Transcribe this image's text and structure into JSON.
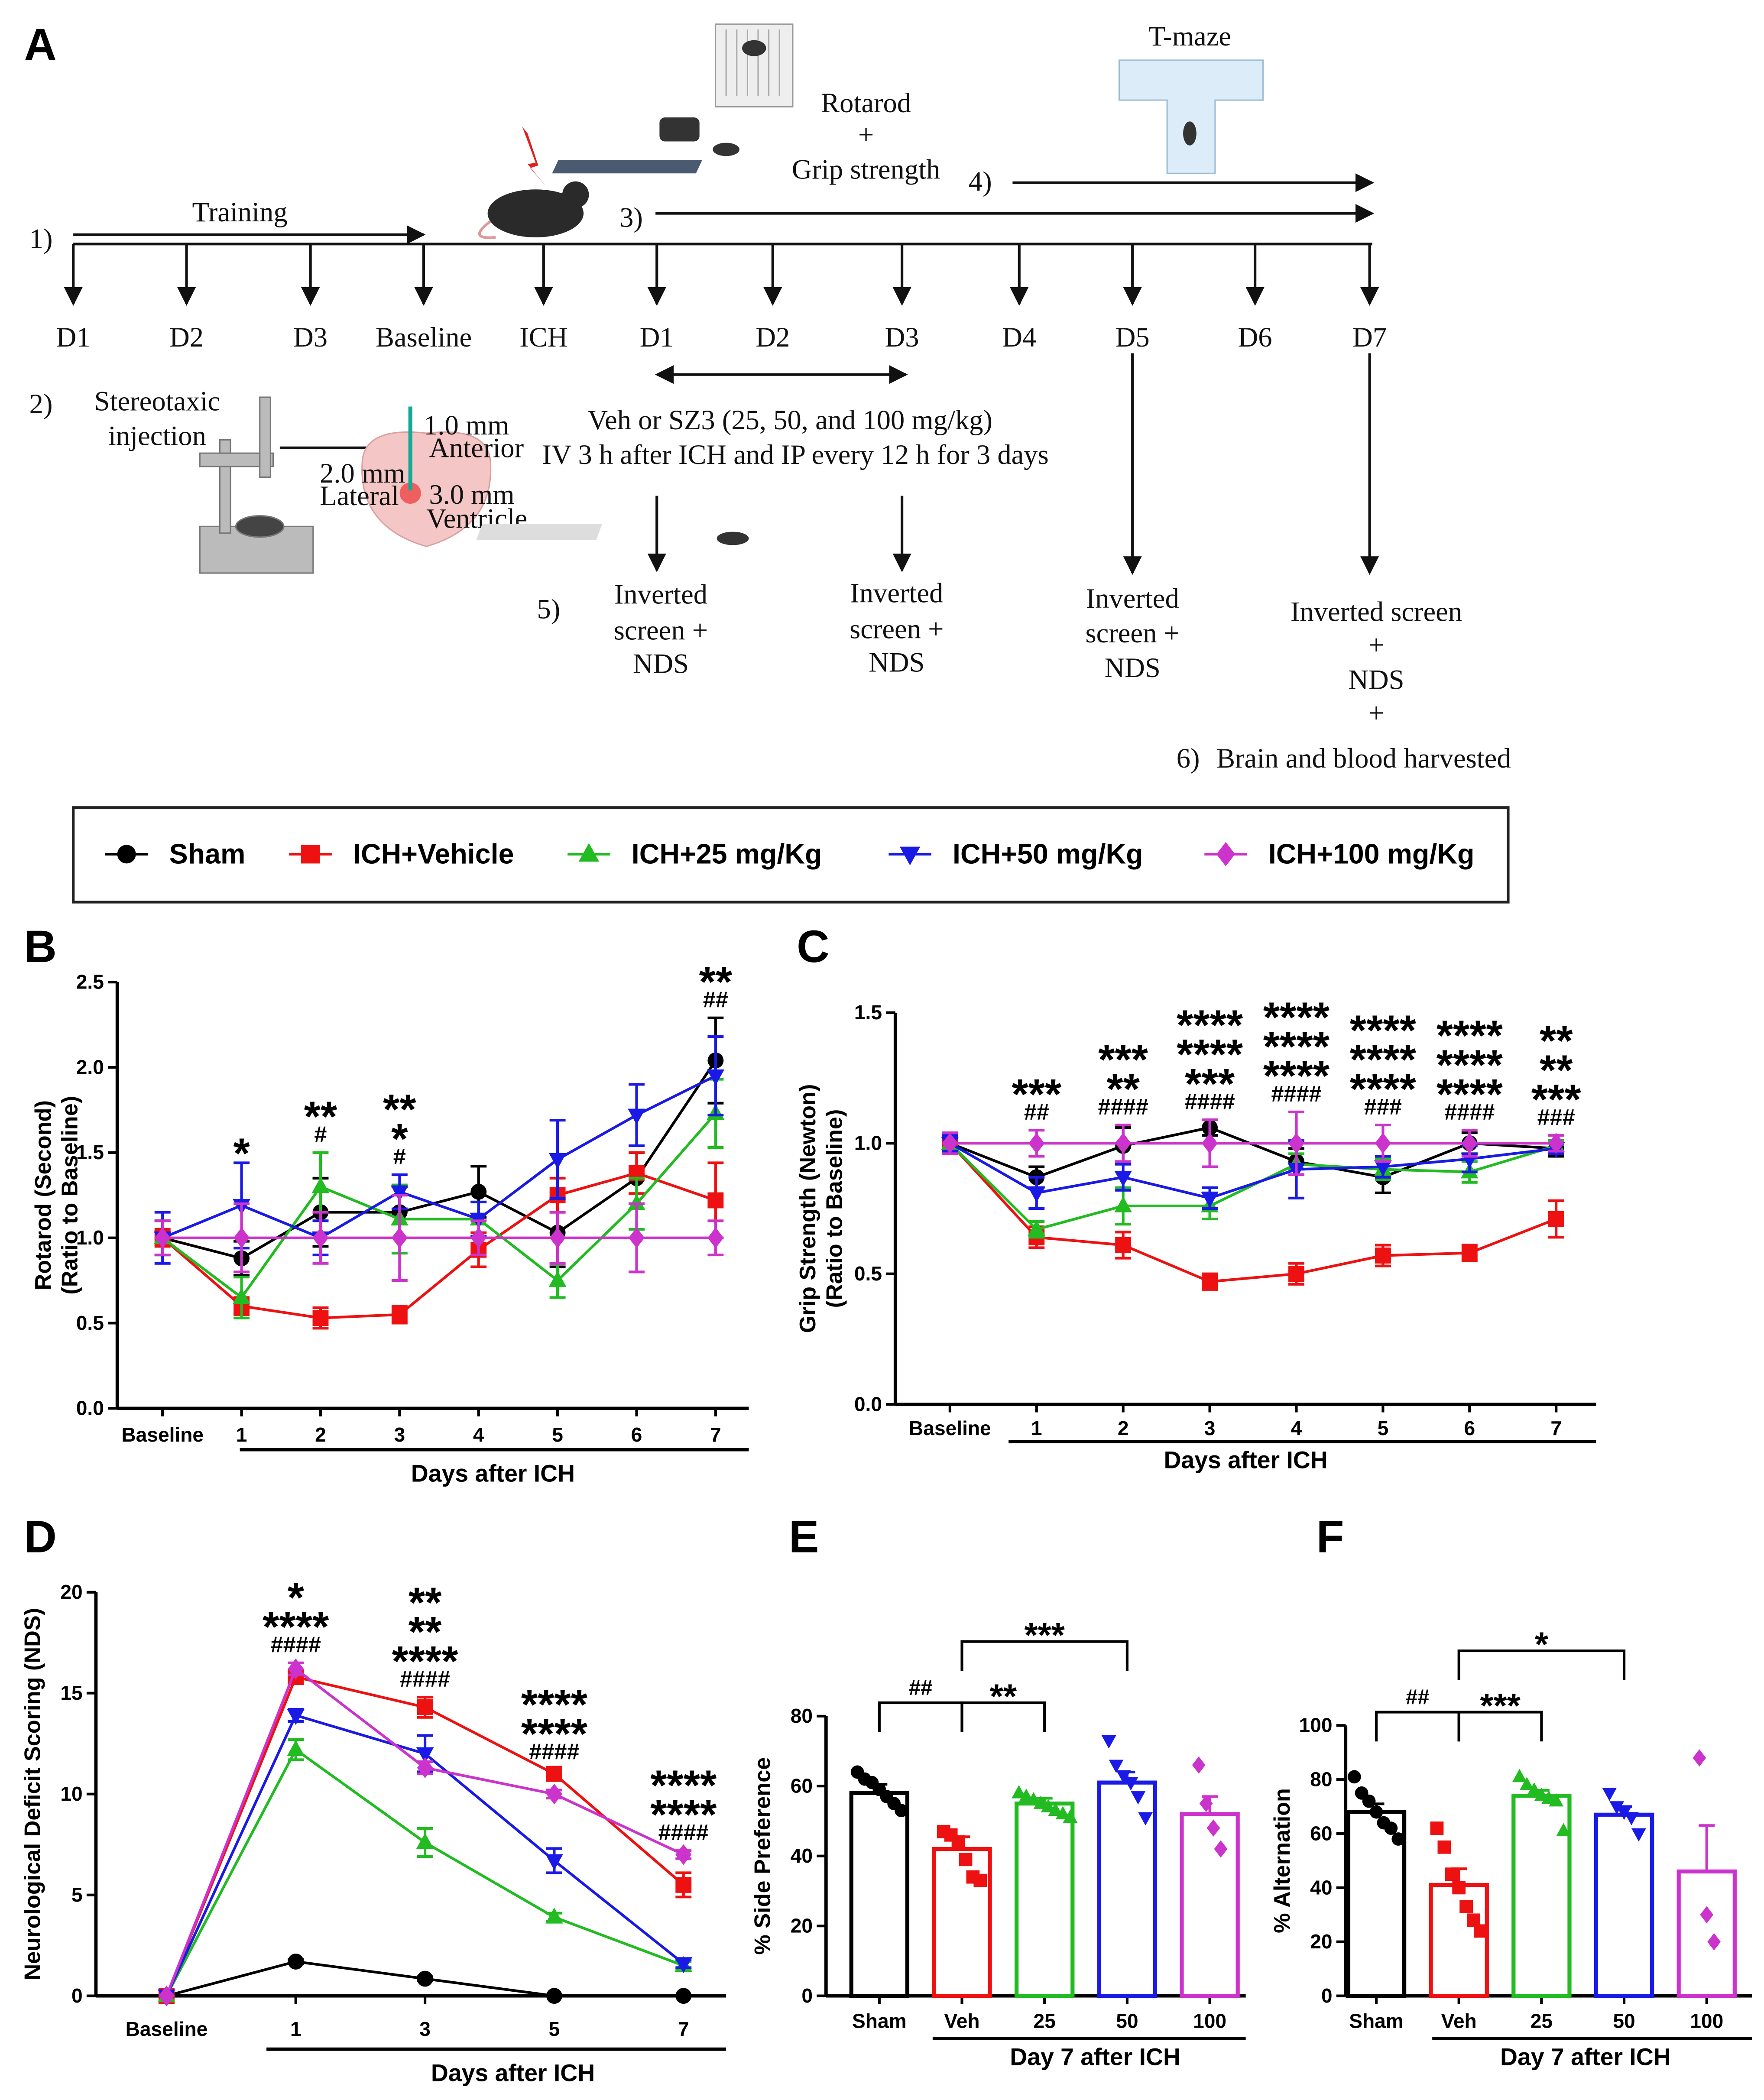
{
  "diagram": {
    "label": "A",
    "training": {
      "step": "1)",
      "label": "Training"
    },
    "timepoints": [
      "D1",
      "D2",
      "D3",
      "Baseline",
      "ICH",
      "D1",
      "D2",
      "D3",
      "D4",
      "D5",
      "D6",
      "D7"
    ],
    "surgery": {
      "step": "2)",
      "label": [
        "Stereotaxic",
        "injection"
      ],
      "dims": [
        "1.0 mm",
        "Anterior",
        "2.0 mm",
        "Lateral",
        "3.0 mm",
        "Ventricle"
      ]
    },
    "treatment": [
      "Veh or SZ3 (25, 50, and 100 mg/kg)",
      "IV 3 h after ICH and IP every 12 h for 3 days"
    ],
    "motor": {
      "step": "3)",
      "label": [
        "Rotarod",
        "+",
        "Grip strength"
      ]
    },
    "tmaze": {
      "step": "4)",
      "label": "T-maze"
    },
    "assessment_step": "5)",
    "assessments": [
      [
        "Inverted",
        "screen +",
        "NDS"
      ],
      [
        "Inverted",
        "screen +",
        "NDS"
      ],
      [
        "Inverted",
        "screen +",
        "NDS"
      ],
      [
        "Inverted screen",
        "+",
        "NDS",
        "+"
      ]
    ],
    "harvest": {
      "step": "6)",
      "label": "Brain and blood harvested"
    }
  },
  "chart_data": [
    {
      "type": "line",
      "panel": "B",
      "ylabel": [
        "Rotarod (Second)",
        "(Ratio to Baseline)"
      ],
      "xlabel": "Days after ICH",
      "categories": [
        "Baseline",
        "1",
        "2",
        "3",
        "4",
        "5",
        "6",
        "7"
      ],
      "ylim": [
        0,
        2.5
      ],
      "yticks": [
        {
          "value": 0,
          "label": "0.0"
        },
        {
          "value": 0.5,
          "label": "0.5"
        },
        {
          "value": 1,
          "label": "1.0"
        },
        {
          "value": 1.5,
          "label": "1.5"
        },
        {
          "value": 2,
          "label": "2.0"
        },
        {
          "value": 2.5,
          "label": "2.5"
        }
      ],
      "series": [
        {
          "name": "Sham",
          "color": "#000000",
          "marker": "circle",
          "values": [
            1.0,
            0.88,
            1.15,
            1.15,
            1.27,
            1.03,
            1.35,
            2.04
          ],
          "errors": [
            0.1,
            0.1,
            0.2,
            0.15,
            0.15,
            0.2,
            0.15,
            0.25
          ]
        },
        {
          "name": "ICH+Vehicle",
          "color": "#ee1111",
          "marker": "square",
          "values": [
            1.0,
            0.6,
            0.53,
            0.55,
            0.93,
            1.25,
            1.38,
            1.22
          ],
          "errors": [
            0.05,
            0.05,
            0.06,
            0.05,
            0.1,
            0.1,
            0.12,
            0.22
          ]
        },
        {
          "name": "ICH+25 mg/Kg",
          "color": "#22bb22",
          "marker": "triangle-up",
          "values": [
            1.0,
            0.65,
            1.3,
            1.11,
            1.11,
            0.75,
            1.2,
            1.73
          ],
          "errors": [
            0.1,
            0.12,
            0.2,
            0.2,
            0.1,
            0.1,
            0.15,
            0.2
          ]
        },
        {
          "name": "ICH+50 mg/Kg",
          "color": "#1a1ae6",
          "marker": "triangle-down",
          "values": [
            1.0,
            1.19,
            1.0,
            1.27,
            1.11,
            1.46,
            1.72,
            1.95
          ],
          "errors": [
            0.15,
            0.25,
            0.1,
            0.1,
            0.1,
            0.23,
            0.18,
            0.23
          ]
        },
        {
          "name": "ICH+100 mg/Kg",
          "color": "#cc33cc",
          "marker": "diamond",
          "values": [
            1.0,
            1.0,
            1.0,
            1.0,
            1.0,
            1.0,
            1.0,
            1.0
          ],
          "errors": [
            0.1,
            0.2,
            0.15,
            0.25,
            0.1,
            0.15,
            0.2,
            0.1
          ]
        }
      ],
      "annotations": [
        null,
        [
          {
            "text": "*",
            "color": "#1a1ae6"
          }
        ],
        [
          {
            "text": "**",
            "color": "#22bb22"
          },
          {
            "text": "#",
            "color": "#000000"
          }
        ],
        [
          {
            "text": "**",
            "color": "#1a1ae6"
          },
          {
            "text": "*",
            "color": "#22bb22"
          },
          {
            "text": "#",
            "color": "#000000"
          }
        ],
        null,
        null,
        null,
        [
          {
            "text": "**",
            "color": "#1a1ae6"
          },
          {
            "text": "##",
            "color": "#000000"
          }
        ]
      ]
    },
    {
      "type": "line",
      "panel": "C",
      "ylabel": [
        "Grip Strength (Newton)",
        "(Ratio to Baseline)"
      ],
      "xlabel": "Days after ICH",
      "categories": [
        "Baseline",
        "1",
        "2",
        "3",
        "4",
        "5",
        "6",
        "7"
      ],
      "ylim": [
        0,
        1.5
      ],
      "yticks": [
        {
          "value": 0,
          "label": "0.0"
        },
        {
          "value": 0.5,
          "label": "0.5"
        },
        {
          "value": 1,
          "label": "1.0"
        },
        {
          "value": 1.5,
          "label": "1.5"
        }
      ],
      "series": [
        {
          "name": "Sham",
          "color": "#000000",
          "marker": "circle",
          "values": [
            1.0,
            0.87,
            0.99,
            1.06,
            0.93,
            0.87,
            1.0,
            0.98
          ],
          "errors": [
            0.04,
            0.04,
            0.07,
            0.03,
            0.05,
            0.06,
            0.04,
            0.03
          ]
        },
        {
          "name": "ICH+Vehicle",
          "color": "#ee1111",
          "marker": "square",
          "values": [
            1.0,
            0.64,
            0.61,
            0.47,
            0.5,
            0.57,
            0.58,
            0.71
          ],
          "errors": [
            0.04,
            0.04,
            0.05,
            0.03,
            0.04,
            0.04,
            0.03,
            0.07
          ]
        },
        {
          "name": "ICH+25 mg/Kg",
          "color": "#22bb22",
          "marker": "triangle-up",
          "values": [
            1.0,
            0.67,
            0.76,
            0.76,
            0.92,
            0.9,
            0.89,
            0.99
          ],
          "errors": [
            0.04,
            0.03,
            0.07,
            0.05,
            0.04,
            0.04,
            0.04,
            0.02
          ]
        },
        {
          "name": "ICH+50 mg/Kg",
          "color": "#1a1ae6",
          "marker": "triangle-down",
          "values": [
            1.0,
            0.81,
            0.87,
            0.79,
            0.9,
            0.91,
            0.94,
            0.98
          ],
          "errors": [
            0.03,
            0.06,
            0.05,
            0.04,
            0.11,
            0.04,
            0.05,
            0.02
          ]
        },
        {
          "name": "ICH+100 mg/Kg",
          "color": "#cc33cc",
          "marker": "diamond",
          "values": [
            1.0,
            1.0,
            1.0,
            1.0,
            1.0,
            1.0,
            1.0,
            1.0
          ],
          "errors": [
            0.04,
            0.05,
            0.07,
            0.09,
            0.12,
            0.07,
            0.05,
            0.03
          ]
        }
      ],
      "annotations": [
        null,
        [
          {
            "text": "***",
            "color": "#cc33cc"
          },
          {
            "text": "##",
            "color": "#000000"
          }
        ],
        [
          {
            "text": "***",
            "color": "#cc33cc"
          },
          {
            "text": "**",
            "color": "#1a1ae6"
          },
          {
            "text": "####",
            "color": "#000000"
          }
        ],
        [
          {
            "text": "****",
            "color": "#cc33cc"
          },
          {
            "text": "****",
            "color": "#1a1ae6"
          },
          {
            "text": "***",
            "color": "#22bb22"
          },
          {
            "text": "####",
            "color": "#000000"
          }
        ],
        [
          {
            "text": "****",
            "color": "#cc33cc"
          },
          {
            "text": "****",
            "color": "#1a1ae6"
          },
          {
            "text": "****",
            "color": "#22bb22"
          },
          {
            "text": "####",
            "color": "#000000"
          }
        ],
        [
          {
            "text": "****",
            "color": "#cc33cc"
          },
          {
            "text": "****",
            "color": "#1a1ae6"
          },
          {
            "text": "****",
            "color": "#22bb22"
          },
          {
            "text": "###",
            "color": "#000000"
          }
        ],
        [
          {
            "text": "****",
            "color": "#cc33cc"
          },
          {
            "text": "****",
            "color": "#1a1ae6"
          },
          {
            "text": "****",
            "color": "#22bb22"
          },
          {
            "text": "####",
            "color": "#000000"
          }
        ],
        [
          {
            "text": "**",
            "color": "#cc33cc"
          },
          {
            "text": "**",
            "color": "#1a1ae6"
          },
          {
            "text": "***",
            "color": "#22bb22"
          },
          {
            "text": "###",
            "color": "#000000"
          }
        ]
      ]
    },
    {
      "type": "line",
      "panel": "D",
      "ylabel": [
        "Neurological Deficit Scoring (NDS)"
      ],
      "xlabel": "Days after ICH",
      "categories": [
        "Baseline",
        "1",
        "3",
        "5",
        "7"
      ],
      "ylim": [
        0,
        20
      ],
      "yticks": [
        0,
        5,
        10,
        15,
        20
      ],
      "series": [
        {
          "name": "Sham",
          "color": "#000000",
          "marker": "circle",
          "values": [
            0,
            1.7,
            0.85,
            0,
            0
          ],
          "errors": [
            0,
            0.1,
            0.1,
            0,
            0
          ]
        },
        {
          "name": "ICH+Vehicle",
          "color": "#ee1111",
          "marker": "square",
          "values": [
            0,
            15.8,
            14.3,
            11,
            5.5
          ],
          "errors": [
            0,
            0.3,
            0.5,
            0.2,
            0.6
          ]
        },
        {
          "name": "ICH+25 mg/Kg",
          "color": "#22bb22",
          "marker": "triangle-up",
          "values": [
            0,
            12.2,
            7.6,
            3.9,
            1.5
          ],
          "errors": [
            0,
            0.5,
            0.7,
            0.2,
            0.2
          ]
        },
        {
          "name": "ICH+50 mg/Kg",
          "color": "#1a1ae6",
          "marker": "triangle-down",
          "values": [
            0,
            13.9,
            12,
            6.7,
            1.6
          ],
          "errors": [
            0,
            0.3,
            0.9,
            0.6,
            0.2
          ]
        },
        {
          "name": "ICH+100 mg/Kg",
          "color": "#cc33cc",
          "marker": "diamond",
          "values": [
            0,
            16.2,
            11.3,
            10,
            7
          ],
          "errors": [
            0,
            0.3,
            0.3,
            0.2,
            0.2
          ]
        }
      ],
      "annotations": [
        null,
        [
          {
            "text": "*",
            "color": "#1a1ae6"
          },
          {
            "text": "****",
            "color": "#22bb22"
          },
          {
            "text": "####",
            "color": "#000000"
          }
        ],
        [
          {
            "text": "**",
            "color": "#cc33cc"
          },
          {
            "text": "**",
            "color": "#1a1ae6"
          },
          {
            "text": "****",
            "color": "#22bb22"
          },
          {
            "text": "####",
            "color": "#000000"
          }
        ],
        [
          {
            "text": "****",
            "color": "#1a1ae6"
          },
          {
            "text": "****",
            "color": "#22bb22"
          },
          {
            "text": "####",
            "color": "#000000"
          }
        ],
        [
          {
            "text": "****",
            "color": "#1a1ae6"
          },
          {
            "text": "****",
            "color": "#22bb22"
          },
          {
            "text": "####",
            "color": "#000000"
          }
        ]
      ]
    },
    {
      "type": "bar",
      "panel": "E",
      "ylabel": [
        "% Side Preference"
      ],
      "xlabel": "Day 7 after ICH",
      "categories": [
        "Sham",
        "Veh",
        "25",
        "50",
        "100"
      ],
      "colors": [
        "#000000",
        "#ee1111",
        "#22bb22",
        "#1a1ae6",
        "#cc33cc"
      ],
      "markers": [
        "circle",
        "square",
        "triangle-up",
        "triangle-down",
        "diamond"
      ],
      "ylim": [
        0,
        80
      ],
      "yticks": [
        0,
        20,
        40,
        60,
        80
      ],
      "values": [
        58,
        42,
        55,
        61,
        52
      ],
      "errors": [
        2.5,
        3.5,
        1.5,
        3,
        5
      ],
      "points": [
        [
          64,
          62,
          61,
          59,
          57,
          55,
          53
        ],
        [
          47,
          46,
          44,
          39,
          34,
          33
        ],
        [
          58,
          57,
          56,
          55,
          54,
          53,
          52,
          51
        ],
        [
          73,
          66,
          63,
          61,
          57,
          51
        ],
        [
          66,
          55,
          48,
          42
        ]
      ],
      "comparisons": [
        {
          "pair": [
            "Sham",
            "Veh"
          ],
          "label": "##"
        },
        {
          "pair": [
            "Veh",
            "25"
          ],
          "label": "**"
        },
        {
          "pair": [
            "Veh",
            "50"
          ],
          "label": "***"
        }
      ]
    },
    {
      "type": "bar",
      "panel": "F",
      "ylabel": [
        "% Alternation"
      ],
      "xlabel": "Day 7 after ICH",
      "categories": [
        "Sham",
        "Veh",
        "25",
        "50",
        "100"
      ],
      "colors": [
        "#000000",
        "#ee1111",
        "#22bb22",
        "#1a1ae6",
        "#cc33cc"
      ],
      "markers": [
        "circle",
        "square",
        "triangle-up",
        "triangle-down",
        "diamond"
      ],
      "ylim": [
        0,
        100
      ],
      "yticks": [
        0,
        20,
        40,
        60,
        80,
        100
      ],
      "values": [
        68,
        41,
        74,
        67,
        46
      ],
      "errors": [
        3,
        6,
        2,
        3,
        17
      ],
      "points": [
        [
          81,
          75,
          72,
          68,
          64,
          62,
          58
        ],
        [
          62,
          55,
          45,
          40,
          33,
          28,
          24
        ],
        [
          81,
          78,
          76,
          74,
          73,
          72,
          61
        ],
        [
          75,
          70,
          68,
          66,
          60
        ],
        [
          88,
          30,
          20
        ]
      ],
      "comparisons": [
        {
          "pair": [
            "Sham",
            "Veh"
          ],
          "label": "##"
        },
        {
          "pair": [
            "Veh",
            "25"
          ],
          "label": "***"
        },
        {
          "pair": [
            "Veh",
            "50"
          ],
          "label": "*"
        }
      ]
    }
  ]
}
